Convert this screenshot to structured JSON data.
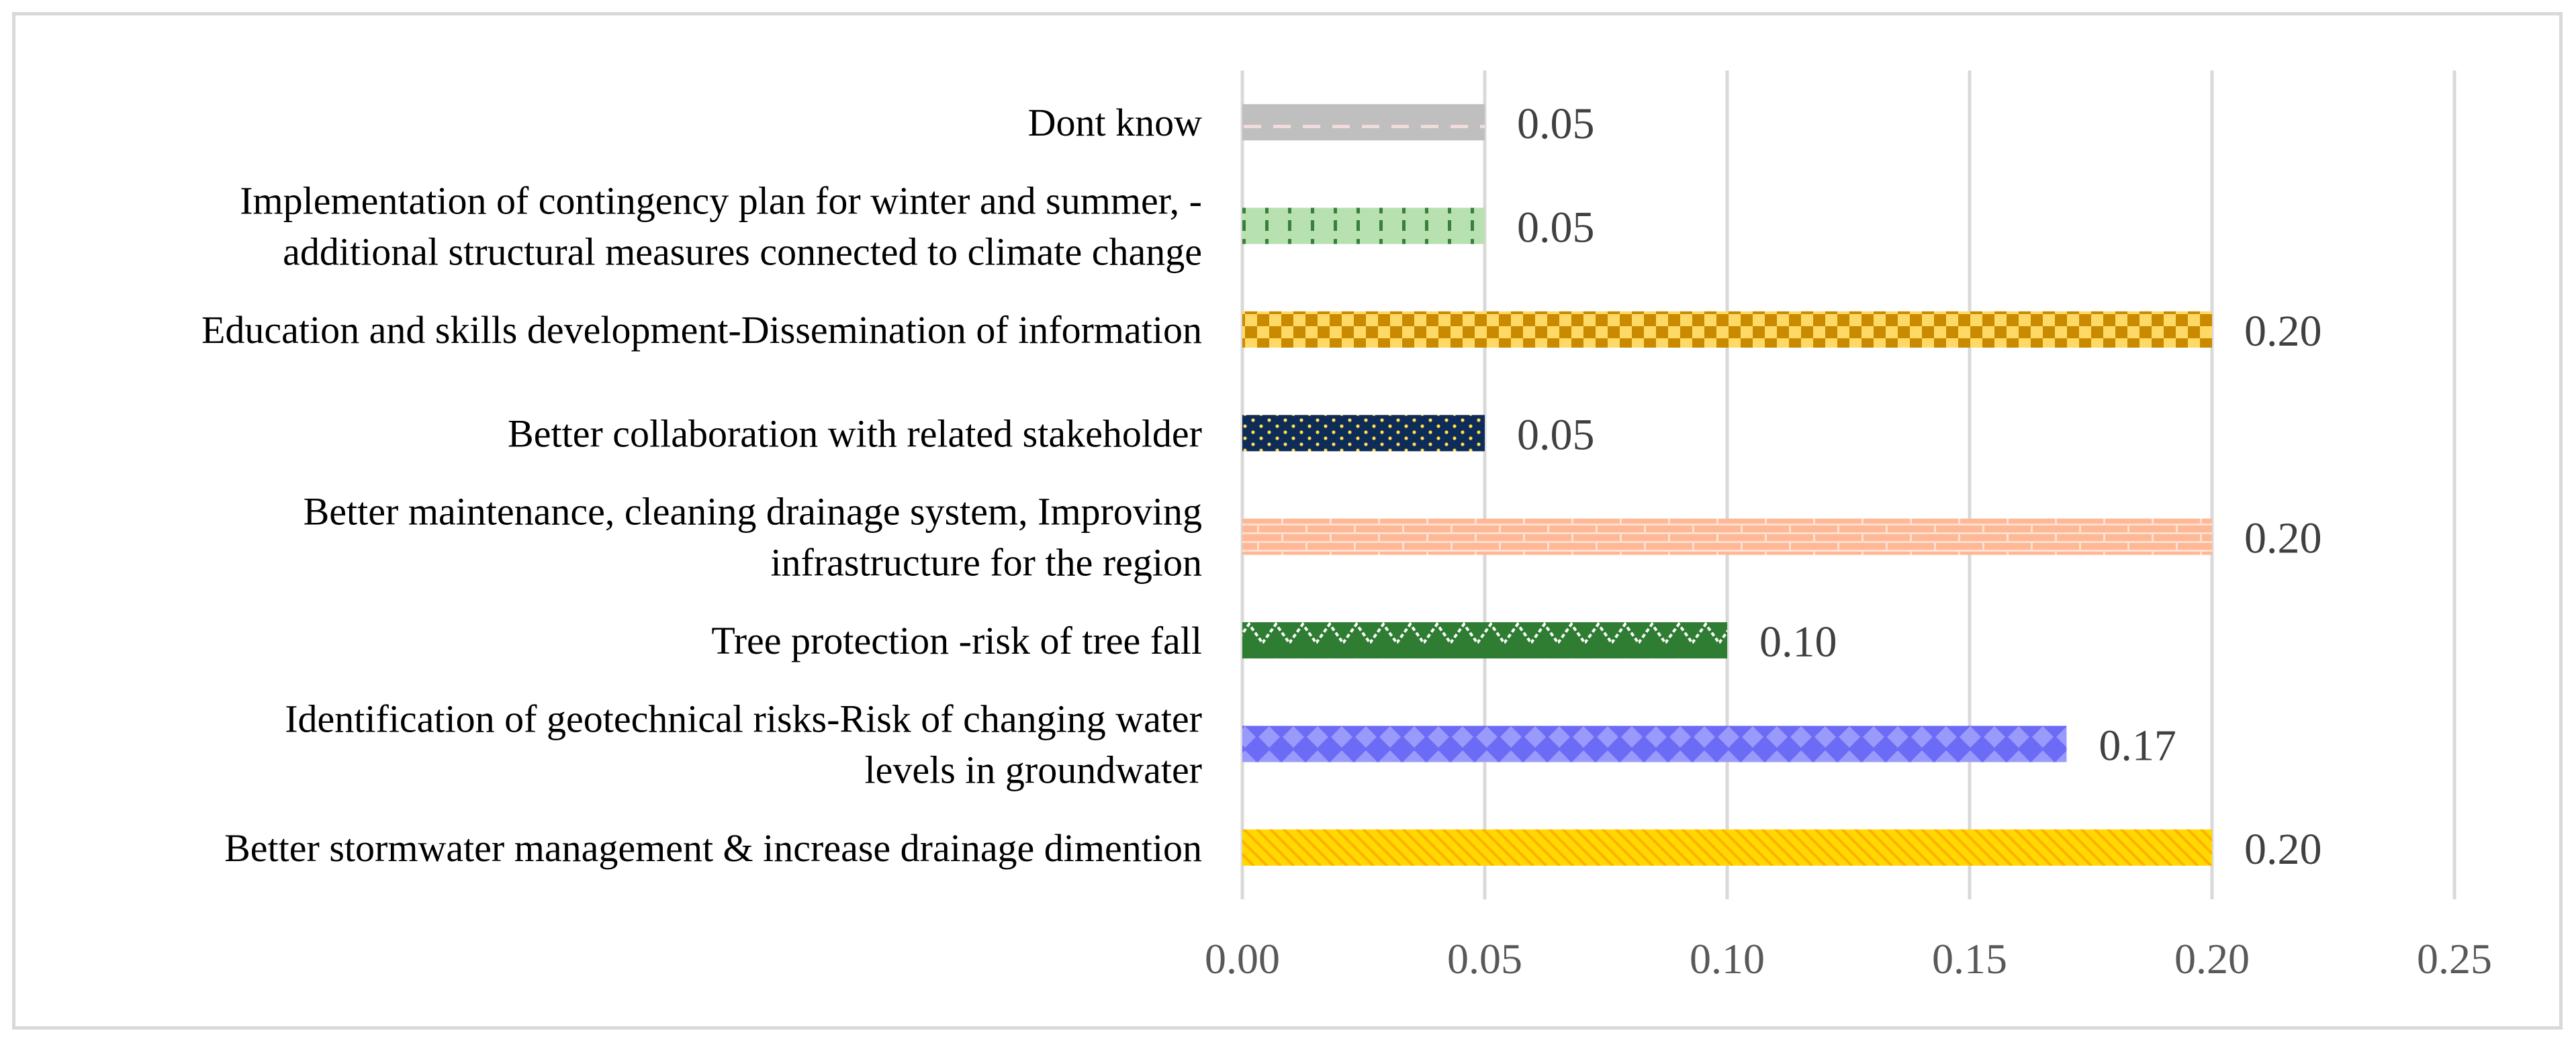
{
  "chart_data": {
    "type": "bar",
    "orientation": "horizontal",
    "title": "",
    "xlabel": "",
    "ylabel": "",
    "xlim": [
      0,
      0.25
    ],
    "x_ticks": [
      "0.00",
      "0.05",
      "0.10",
      "0.15",
      "0.20",
      "0.25"
    ],
    "x_tick_values": [
      0,
      0.05,
      0.1,
      0.15,
      0.2,
      0.25
    ],
    "grid": "vertical",
    "legend": "none",
    "categories": [
      [
        "Dont know"
      ],
      [
        "Implementation of contingency plan for winter and summer, -",
        "additional structural measures connected to climate change"
      ],
      [
        "Education and skills development-Dissemination of information"
      ],
      [
        "Better collaboration with related stakeholder"
      ],
      [
        "Better maintenance, cleaning drainage system,  Improving",
        "infrastructure for the region"
      ],
      [
        "Tree protection -risk of tree fall"
      ],
      [
        "Identification of  geotechnical risks-Risk of changing water",
        "levels in groundwater"
      ],
      [
        "Better stormwater management & increase drainage dimention"
      ]
    ],
    "values": [
      0.05,
      0.05,
      0.2,
      0.05,
      0.2,
      0.1,
      0.17,
      0.2
    ],
    "value_labels": [
      "0.05",
      "0.05",
      "0.20",
      "0.05",
      "0.20",
      "0.10",
      "0.17",
      "0.20"
    ],
    "bar_styles": [
      {
        "pattern": "dashes",
        "color": "#bfbfbf",
        "accent": "#f2dcdb"
      },
      {
        "pattern": "vertical-dashes",
        "color": "#b7e1b0",
        "accent": "#38803c"
      },
      {
        "pattern": "checker",
        "color": "#ffd965",
        "accent": "#c98a00"
      },
      {
        "pattern": "dots",
        "color": "#0f2b57",
        "accent": "#ffe14d"
      },
      {
        "pattern": "brick",
        "color": "#ffb895",
        "accent": "#fde0d0"
      },
      {
        "pattern": "zigzag",
        "color": "#2e7d32",
        "accent": "#ffffff"
      },
      {
        "pattern": "diamonds",
        "color": "#6b6bf6",
        "accent": "#9a9afc"
      },
      {
        "pattern": "diagonal-stripes",
        "color": "#ffd900",
        "accent": "#ffb000"
      }
    ],
    "colors": {
      "grid": "#d9d9d9",
      "frame": "#d9d9d9"
    }
  }
}
